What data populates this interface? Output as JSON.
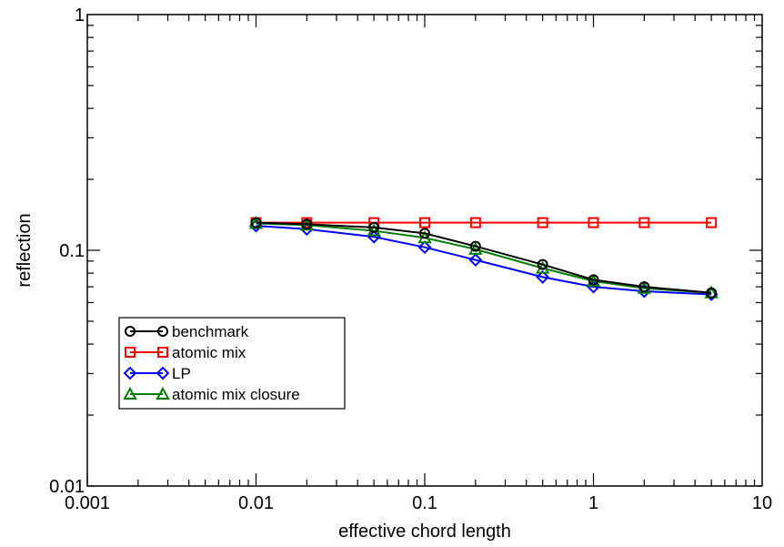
{
  "chart_data": {
    "type": "line",
    "xlabel": "effective chord length",
    "ylabel": "reflection",
    "xscale": "log",
    "yscale": "log",
    "xlim": [
      0.001,
      10
    ],
    "ylim": [
      0.01,
      1
    ],
    "x_ticks": [
      "0.001",
      "0.01",
      "0.1",
      "1",
      "10"
    ],
    "y_ticks": [
      "0.01",
      "0.1",
      "1"
    ],
    "grid": false,
    "legend_position": "lower-left",
    "series": [
      {
        "name": "benchmark",
        "color": "#000000",
        "marker": "circle",
        "x": [
          0.01,
          0.02,
          0.05,
          0.1,
          0.2,
          0.5,
          1,
          2,
          5
        ],
        "y": [
          0.131,
          0.129,
          0.125,
          0.118,
          0.104,
          0.087,
          0.075,
          0.07,
          0.066
        ]
      },
      {
        "name": "atomic mix",
        "color": "#ff0000",
        "marker": "square",
        "x": [
          0.01,
          0.02,
          0.05,
          0.1,
          0.2,
          0.5,
          1,
          2,
          5
        ],
        "y": [
          0.131,
          0.131,
          0.131,
          0.131,
          0.131,
          0.131,
          0.131,
          0.131,
          0.131
        ]
      },
      {
        "name": "LP",
        "color": "#0000ff",
        "marker": "diamond",
        "x": [
          0.01,
          0.02,
          0.05,
          0.1,
          0.2,
          0.5,
          1,
          2,
          5
        ],
        "y": [
          0.127,
          0.123,
          0.114,
          0.103,
          0.091,
          0.077,
          0.07,
          0.067,
          0.065
        ]
      },
      {
        "name": "atomic mix closure",
        "color": "#008000",
        "marker": "triangle",
        "x": [
          0.01,
          0.02,
          0.05,
          0.1,
          0.2,
          0.5,
          1,
          2,
          5
        ],
        "y": [
          0.13,
          0.128,
          0.121,
          0.113,
          0.101,
          0.084,
          0.074,
          0.069,
          0.066
        ]
      }
    ]
  }
}
